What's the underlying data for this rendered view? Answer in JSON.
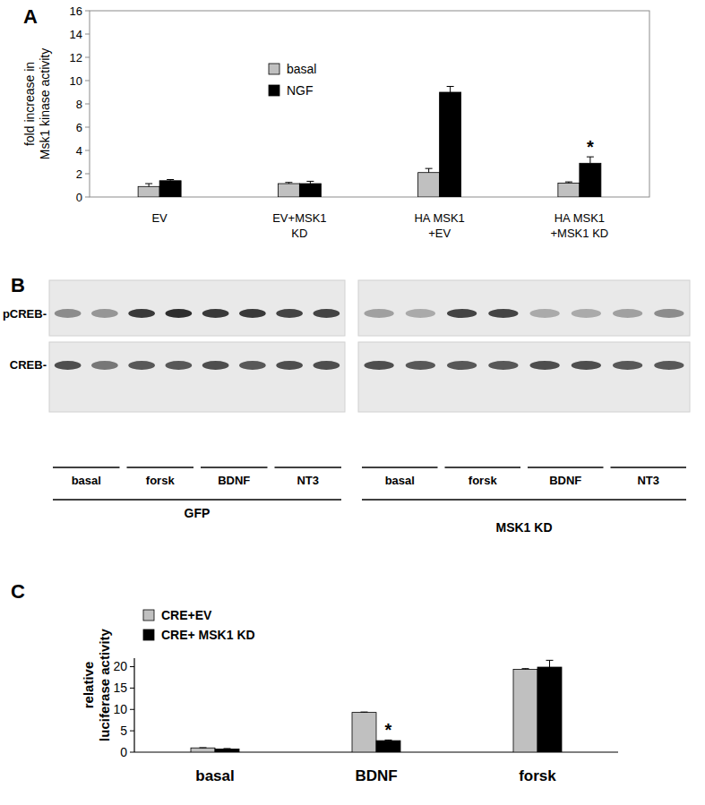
{
  "chart_data": [
    {
      "type": "bar",
      "title": "A",
      "y_label": "fold increase in\nMsk1 kinase activity",
      "categories": [
        "EV",
        "EV+MSK1\nKD",
        "HA MSK1\n+EV",
        "HA MSK1\n+MSK1 KD"
      ],
      "series": [
        {
          "name": "basal",
          "color": "#c0c0c0",
          "values": [
            0.9,
            1.15,
            2.1,
            1.2
          ],
          "errors": [
            0.25,
            0.1,
            0.35,
            0.1
          ]
        },
        {
          "name": "NGF",
          "color": "#000000",
          "values": [
            1.4,
            1.15,
            9.0,
            2.9
          ],
          "errors": [
            0.1,
            0.2,
            0.5,
            0.55
          ]
        }
      ],
      "ylim": [
        0,
        16
      ],
      "yticks": [
        0,
        2,
        4,
        6,
        8,
        10,
        12,
        14,
        16
      ],
      "grid": false,
      "legend": "top-left",
      "annotations": [
        {
          "text": "*",
          "series": 1,
          "category": 3
        }
      ]
    },
    {
      "type": "bar",
      "title": "C",
      "y_label": "relative\nluciferase activity",
      "categories": [
        "basal",
        "BDNF",
        "forsk"
      ],
      "series": [
        {
          "name": "CRE+EV",
          "color": "#c0c0c0",
          "values": [
            1.0,
            9.3,
            19.4
          ],
          "errors": [
            0.05,
            0.1,
            0.15
          ]
        },
        {
          "name": "CRE+ MSK1 KD",
          "color": "#000000",
          "values": [
            0.75,
            2.7,
            19.9
          ],
          "errors": [
            0.1,
            0.15,
            1.6
          ]
        }
      ],
      "ylim": [
        0,
        22
      ],
      "yticks": [
        0,
        5,
        10,
        15,
        20
      ],
      "grid": false,
      "legend": "top-left",
      "annotations": [
        {
          "text": "*",
          "series": 1,
          "category": 1
        }
      ]
    }
  ],
  "blot": {
    "title": "B",
    "rows": [
      "pCREB-",
      "CREB-"
    ],
    "panels": [
      {
        "group": "GFP",
        "conditions": [
          "basal",
          "forsk",
          "BDNF",
          "NT3"
        ],
        "bands": [
          [
            0.45,
            0.4,
            0.85,
            0.9,
            0.85,
            0.85,
            0.8,
            0.8
          ],
          [
            0.75,
            0.55,
            0.7,
            0.7,
            0.75,
            0.7,
            0.75,
            0.75
          ]
        ]
      },
      {
        "group": "MSK1 KD",
        "conditions": [
          "basal",
          "forsk",
          "BDNF",
          "NT3"
        ],
        "bands": [
          [
            0.35,
            0.3,
            0.8,
            0.8,
            0.3,
            0.3,
            0.35,
            0.45
          ],
          [
            0.75,
            0.7,
            0.7,
            0.7,
            0.75,
            0.75,
            0.7,
            0.7
          ]
        ]
      }
    ]
  }
}
